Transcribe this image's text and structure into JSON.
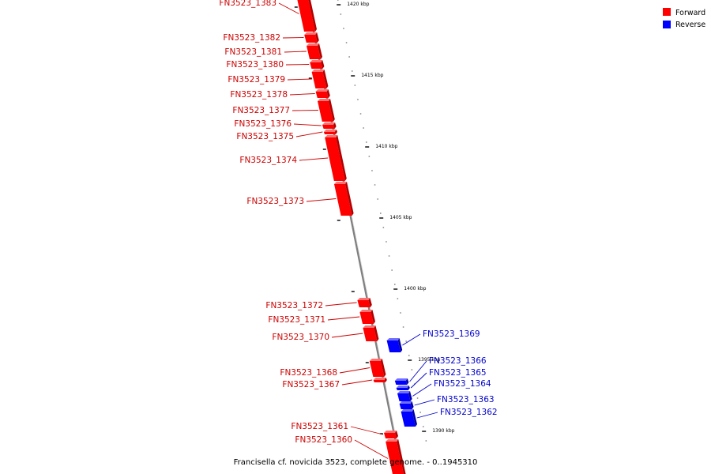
{
  "caption": "Francisella cf. novicida 3523, complete genome. - 0..1945310",
  "legend": [
    {
      "label": "Forward",
      "color": "#ff0000"
    },
    {
      "label": "Reverse",
      "color": "#0000ff"
    }
  ],
  "colors": {
    "forward": "#ff0000",
    "forward_label": "#cc0000",
    "reverse": "#0000ff",
    "reverse_label": "#0000cc",
    "axis": "#808080"
  },
  "ticks": [
    "1420 kbp",
    "1415 kbp",
    "1410 kbp",
    "1405 kbp",
    "1400 kbp",
    "1395 kbp",
    "1390 kbp"
  ],
  "genes": [
    {
      "id": "FN3523_1383",
      "strand": "forward"
    },
    {
      "id": "FN3523_1382",
      "strand": "forward"
    },
    {
      "id": "FN3523_1381",
      "strand": "forward"
    },
    {
      "id": "FN3523_1380",
      "strand": "forward"
    },
    {
      "id": "FN3523_1379",
      "strand": "forward"
    },
    {
      "id": "FN3523_1378",
      "strand": "forward"
    },
    {
      "id": "FN3523_1377",
      "strand": "forward"
    },
    {
      "id": "FN3523_1376",
      "strand": "forward"
    },
    {
      "id": "FN3523_1375",
      "strand": "forward"
    },
    {
      "id": "FN3523_1374",
      "strand": "forward"
    },
    {
      "id": "FN3523_1373",
      "strand": "forward"
    },
    {
      "id": "FN3523_1372",
      "strand": "forward"
    },
    {
      "id": "FN3523_1371",
      "strand": "forward"
    },
    {
      "id": "FN3523_1370",
      "strand": "forward"
    },
    {
      "id": "FN3523_1369",
      "strand": "reverse"
    },
    {
      "id": "FN3523_1368",
      "strand": "forward"
    },
    {
      "id": "FN3523_1367",
      "strand": "forward"
    },
    {
      "id": "FN3523_1366",
      "strand": "reverse"
    },
    {
      "id": "FN3523_1365",
      "strand": "reverse"
    },
    {
      "id": "FN3523_1364",
      "strand": "reverse"
    },
    {
      "id": "FN3523_1363",
      "strand": "reverse"
    },
    {
      "id": "FN3523_1362",
      "strand": "reverse"
    },
    {
      "id": "FN3523_1361",
      "strand": "forward"
    },
    {
      "id": "FN3523_1360",
      "strand": "forward"
    }
  ]
}
